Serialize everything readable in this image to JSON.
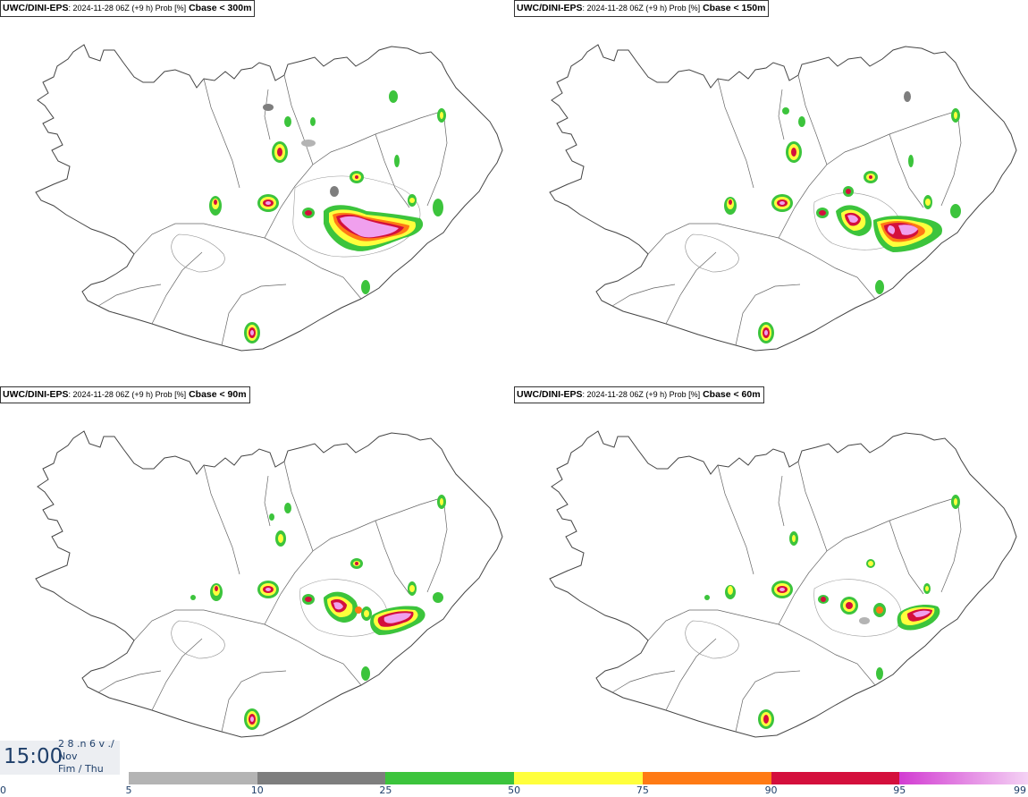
{
  "panels": [
    {
      "model": "UWC/DINI-EPS",
      "meta": ": 2024-11-28 06Z (+9 h) Prob [%]",
      "variable": "Cbase < 300m"
    },
    {
      "model": "UWC/DINI-EPS",
      "meta": ": 2024-11-28 06Z (+9 h) Prob [%]",
      "variable": "Cbase < 150m"
    },
    {
      "model": "UWC/DINI-EPS",
      "meta": ": 2024-11-28 06Z (+9 h) Prob [%]",
      "variable": "Cbase < 90m"
    },
    {
      "model": "UWC/DINI-EPS",
      "meta": ": 2024-11-28 06Z (+9 h) Prob [%]",
      "variable": "Cbase < 60m"
    }
  ],
  "time": {
    "clock": "15:00",
    "line1": "2 8 .n 6 v ./",
    "line2": "Nov",
    "line3": "Fim / Thu"
  },
  "legend": {
    "bins": [
      {
        "from": 5,
        "to": 10,
        "color": "#b4b4b4"
      },
      {
        "from": 10,
        "to": 25,
        "color": "#7e7e7e"
      },
      {
        "from": 25,
        "to": 50,
        "color": "#3cc43c"
      },
      {
        "from": 50,
        "to": 75,
        "color": "#ffff3c"
      },
      {
        "from": 75,
        "to": 90,
        "color": "#ff7a14"
      },
      {
        "from": 90,
        "to": 95,
        "color": "#d40f3c"
      },
      {
        "from": 95,
        "to": 99,
        "color": "#d23cd2"
      }
    ],
    "ticks": [
      "0",
      "5",
      "10",
      "25",
      "50",
      "75",
      "90",
      "95",
      "99"
    ]
  }
}
